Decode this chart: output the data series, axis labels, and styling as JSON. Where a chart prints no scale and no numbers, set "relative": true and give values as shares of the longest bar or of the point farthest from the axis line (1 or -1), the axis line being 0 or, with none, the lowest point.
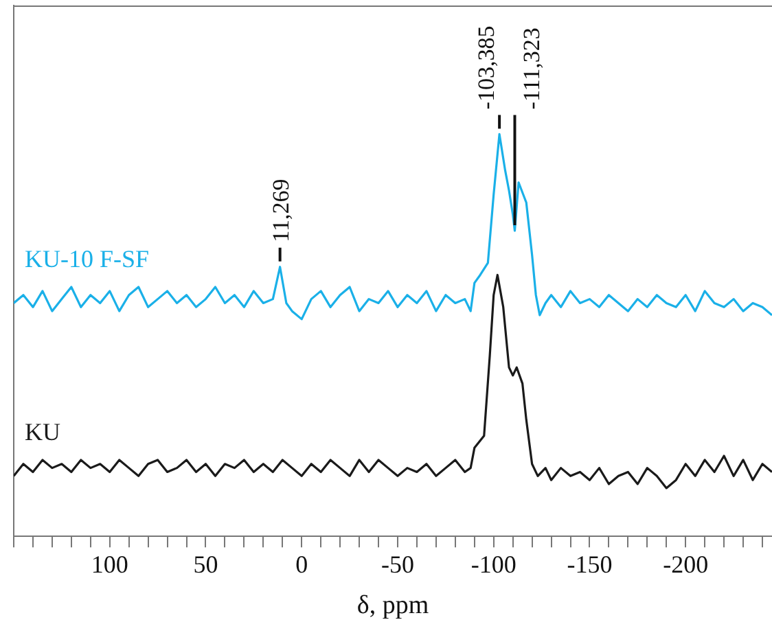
{
  "chart_data": {
    "type": "line",
    "relative": true,
    "xlabel": "δ, ppm",
    "xlim": [
      150,
      -245
    ],
    "xticks": [
      {
        "value": 150,
        "label": null
      },
      {
        "value": 140,
        "label": null
      },
      {
        "value": 130,
        "label": null
      },
      {
        "value": 120,
        "label": null
      },
      {
        "value": 110,
        "label": null
      },
      100,
      {
        "value": 90,
        "label": null
      },
      {
        "value": 80,
        "label": null
      },
      {
        "value": 70,
        "label": null
      },
      {
        "value": 60,
        "label": null
      },
      50,
      {
        "value": 40,
        "label": null
      },
      {
        "value": 30,
        "label": null
      },
      {
        "value": 20,
        "label": null
      },
      {
        "value": 10,
        "label": null
      },
      0,
      {
        "value": -10,
        "label": null
      },
      {
        "value": -20,
        "label": null
      },
      {
        "value": -30,
        "label": null
      },
      {
        "value": -40,
        "label": null
      },
      -50,
      {
        "value": -60,
        "label": null
      },
      {
        "value": -70,
        "label": null
      },
      {
        "value": -80,
        "label": null
      },
      {
        "value": -90,
        "label": null
      },
      -100,
      {
        "value": -110,
        "label": null
      },
      {
        "value": -120,
        "label": null
      },
      {
        "value": -130,
        "label": null
      },
      {
        "value": -140,
        "label": null
      },
      -150,
      {
        "value": -160,
        "label": null
      },
      {
        "value": -170,
        "label": null
      },
      {
        "value": -180,
        "label": null
      },
      {
        "value": -190,
        "label": null
      },
      -200,
      {
        "value": -210,
        "label": null
      },
      {
        "value": -220,
        "label": null
      },
      {
        "value": -230,
        "label": null
      },
      {
        "value": -240,
        "label": null
      }
    ],
    "grid": false,
    "legend": false,
    "marker": "none",
    "line_style": "solid",
    "tick_labels": "x",
    "series": [
      {
        "name": "KU-10 F-SF",
        "color": "#1ab0e8",
        "x": [
          150,
          145,
          140,
          135,
          130,
          125,
          120,
          115,
          110,
          105,
          100,
          95,
          90,
          85,
          80,
          75,
          70,
          65,
          60,
          55,
          50,
          45,
          40,
          35,
          30,
          25,
          20,
          15,
          11.3,
          8,
          5,
          0,
          -5,
          -10,
          -15,
          -20,
          -25,
          -30,
          -35,
          -40,
          -45,
          -50,
          -55,
          -60,
          -65,
          -70,
          -75,
          -80,
          -85,
          -88,
          -90,
          -93,
          -97,
          -100,
          -103,
          -106,
          -108,
          -110,
          -111,
          -113,
          -117,
          -120,
          -122,
          -124,
          -127,
          -130,
          -135,
          -140,
          -145,
          -150,
          -155,
          -160,
          -165,
          -170,
          -175,
          -180,
          -185,
          -190,
          -195,
          -200,
          -205,
          -210,
          -215,
          -220,
          -225,
          -230,
          -235,
          -240,
          -245
        ],
        "values": [
          0.58,
          0.6,
          0.57,
          0.61,
          0.56,
          0.59,
          0.62,
          0.57,
          0.6,
          0.58,
          0.61,
          0.56,
          0.6,
          0.62,
          0.57,
          0.59,
          0.61,
          0.58,
          0.6,
          0.57,
          0.59,
          0.62,
          0.58,
          0.6,
          0.57,
          0.61,
          0.58,
          0.59,
          0.67,
          0.58,
          0.56,
          0.54,
          0.59,
          0.61,
          0.57,
          0.6,
          0.62,
          0.56,
          0.59,
          0.58,
          0.61,
          0.57,
          0.6,
          0.58,
          0.61,
          0.56,
          0.6,
          0.58,
          0.59,
          0.56,
          0.63,
          0.65,
          0.68,
          0.85,
          1.0,
          0.91,
          0.86,
          0.8,
          0.76,
          0.88,
          0.83,
          0.7,
          0.6,
          0.55,
          0.58,
          0.6,
          0.57,
          0.61,
          0.58,
          0.59,
          0.57,
          0.6,
          0.58,
          0.56,
          0.59,
          0.57,
          0.6,
          0.58,
          0.57,
          0.6,
          0.56,
          0.61,
          0.58,
          0.57,
          0.59,
          0.56,
          0.58,
          0.57,
          0.55
        ]
      },
      {
        "name": "KU",
        "color": "#1a1a1a",
        "x": [
          150,
          145,
          140,
          135,
          130,
          125,
          120,
          115,
          110,
          105,
          100,
          95,
          90,
          85,
          80,
          75,
          70,
          65,
          60,
          55,
          50,
          45,
          40,
          35,
          30,
          25,
          20,
          15,
          10,
          5,
          0,
          -5,
          -10,
          -15,
          -20,
          -25,
          -30,
          -35,
          -40,
          -45,
          -50,
          -55,
          -60,
          -65,
          -70,
          -75,
          -80,
          -85,
          -88,
          -90,
          -95,
          -98,
          -100,
          -102,
          -105,
          -108,
          -110,
          -112,
          -115,
          -117,
          -120,
          -123,
          -127,
          -130,
          -135,
          -140,
          -145,
          -150,
          -155,
          -160,
          -165,
          -170,
          -175,
          -180,
          -185,
          -190,
          -195,
          -200,
          -205,
          -210,
          -215,
          -220,
          -225,
          -230,
          -235,
          -240,
          -245
        ],
        "values": [
          0.15,
          0.18,
          0.16,
          0.19,
          0.17,
          0.18,
          0.16,
          0.19,
          0.17,
          0.18,
          0.16,
          0.19,
          0.17,
          0.15,
          0.18,
          0.19,
          0.16,
          0.17,
          0.19,
          0.16,
          0.18,
          0.15,
          0.18,
          0.17,
          0.19,
          0.16,
          0.18,
          0.16,
          0.19,
          0.17,
          0.15,
          0.18,
          0.16,
          0.19,
          0.17,
          0.15,
          0.19,
          0.16,
          0.19,
          0.17,
          0.15,
          0.17,
          0.16,
          0.18,
          0.15,
          0.17,
          0.19,
          0.16,
          0.17,
          0.22,
          0.25,
          0.45,
          0.6,
          0.65,
          0.57,
          0.42,
          0.4,
          0.42,
          0.38,
          0.29,
          0.18,
          0.15,
          0.17,
          0.14,
          0.17,
          0.15,
          0.16,
          0.14,
          0.17,
          0.13,
          0.15,
          0.16,
          0.13,
          0.17,
          0.15,
          0.12,
          0.14,
          0.18,
          0.15,
          0.19,
          0.16,
          0.2,
          0.15,
          0.19,
          0.14,
          0.18,
          0.16
        ]
      }
    ],
    "annotations": [
      {
        "text": "11,269",
        "x": 11.3,
        "y": 0.67
      },
      {
        "text": "-103,385",
        "x": -103,
        "y": 1.0
      },
      {
        "text": "-111,323",
        "x": -111,
        "y": 0.76
      }
    ]
  }
}
